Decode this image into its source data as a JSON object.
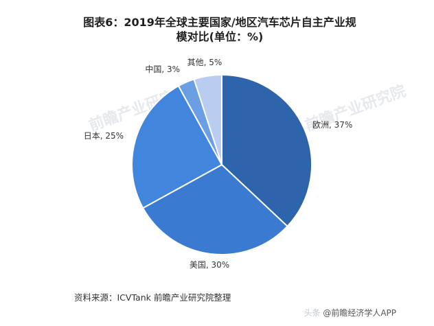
{
  "header": {
    "title_line1": "图表6：2019年全球主要国家/地区汽车芯片自主产业规",
    "title_line2": "模对比(单位：%)"
  },
  "chart_data": {
    "type": "pie",
    "title": "图表6：2019年全球主要国家/地区汽车芯片自主产业规模对比(单位：%)",
    "unit": "%",
    "start": "12 o'clock, clockwise",
    "slices": [
      {
        "label": "欧洲, 37%",
        "name": "欧洲",
        "value": 37,
        "color": "#2e64ab"
      },
      {
        "label": "美国, 30%",
        "name": "美国",
        "value": 30,
        "color": "#3a7bd1"
      },
      {
        "label": "日本, 25%",
        "name": "日本",
        "value": 25,
        "color": "#4186dc"
      },
      {
        "label": "中国, 3%",
        "name": "中国",
        "value": 3,
        "color": "#6a9fe3"
      },
      {
        "label": "其他, 5%",
        "name": "其他",
        "value": 5,
        "color": "#b9cdf1"
      }
    ]
  },
  "source": "资料来源：ICVTank 前瞻产业研究院整理",
  "footer": {
    "watermark": "头条",
    "text": "@前瞻经济学人APP"
  },
  "watermark_text": "前瞻产业研究院"
}
